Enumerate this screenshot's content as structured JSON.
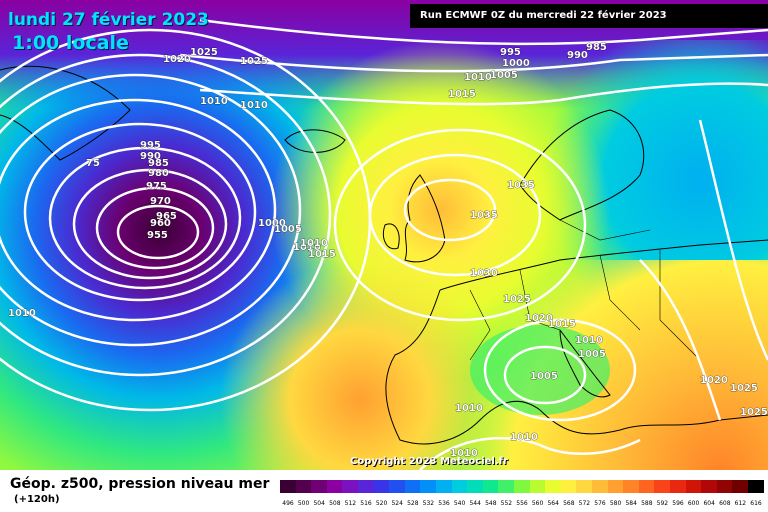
{
  "header": {
    "date": "lundi 27 février 2023",
    "time": "1:00 locale",
    "run": "Run ECMWF 0Z du mercredi 22 février 2023"
  },
  "copyright": "Copyright 2023 Meteociel.fr",
  "legend": {
    "title": "Géop. z500, pression niveau mer",
    "lead": "(+120h)",
    "scale_labels": [
      "496",
      "500",
      "504",
      "508",
      "512",
      "516",
      "520",
      "524",
      "528",
      "532",
      "536",
      "540",
      "544",
      "548",
      "552",
      "556",
      "560",
      "564",
      "568",
      "572",
      "576",
      "580",
      "584",
      "588",
      "592",
      "596",
      "600",
      "604",
      "608",
      "612",
      "616"
    ],
    "scale_colors": [
      "#3a0034",
      "#55004f",
      "#700075",
      "#8a00a0",
      "#7a12c2",
      "#5a24d8",
      "#3a34e8",
      "#2050f0",
      "#1070f5",
      "#0090f8",
      "#00b0f0",
      "#00cce0",
      "#00ddb8",
      "#10e890",
      "#40f068",
      "#80f840",
      "#b8fc30",
      "#e8fc30",
      "#fff040",
      "#ffd840",
      "#ffbc38",
      "#ffa030",
      "#ff8428",
      "#ff6420",
      "#f84418",
      "#e82810",
      "#d01408",
      "#b00808",
      "#900404",
      "#700000",
      "#000000"
    ]
  },
  "isobar_labels": [
    {
      "text": "1025"
    },
    {
      "text": "1020"
    },
    {
      "text": "1025"
    },
    {
      "text": "1010"
    },
    {
      "text": "1010"
    },
    {
      "text": "995"
    },
    {
      "text": "990"
    },
    {
      "text": "985"
    },
    {
      "text": "980"
    },
    {
      "text": "975"
    },
    {
      "text": "970"
    },
    {
      "text": "965"
    },
    {
      "text": "960"
    },
    {
      "text": "955"
    },
    {
      "text": "75"
    },
    {
      "text": "1000"
    },
    {
      "text": "1005"
    },
    {
      "text": "1010"
    },
    {
      "text": "1015"
    },
    {
      "text": "1010"
    },
    {
      "text": "995"
    },
    {
      "text": "990"
    },
    {
      "text": "985"
    },
    {
      "text": "1000"
    },
    {
      "text": "1005"
    },
    {
      "text": "1010"
    },
    {
      "text": "1015"
    },
    {
      "text": "1035"
    },
    {
      "text": "1035"
    },
    {
      "text": "1030"
    },
    {
      "text": "1025"
    },
    {
      "text": "1020"
    },
    {
      "text": "1015"
    },
    {
      "text": "1010"
    },
    {
      "text": "1005"
    },
    {
      "text": "1005"
    },
    {
      "text": "1010"
    },
    {
      "text": "1010"
    },
    {
      "text": "1010"
    },
    {
      "text": "1020"
    },
    {
      "text": "1025"
    },
    {
      "text": "1025"
    },
    {
      "text": "1010"
    }
  ]
}
